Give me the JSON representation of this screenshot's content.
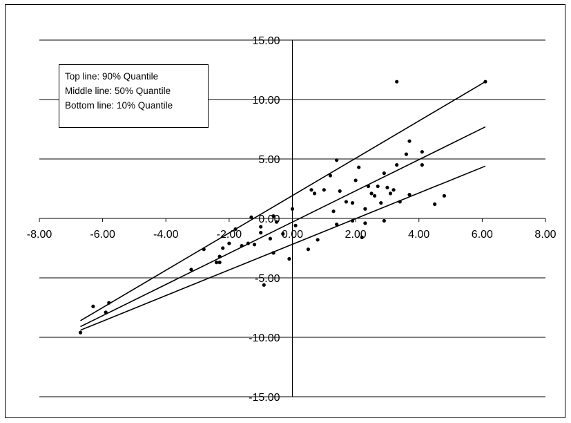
{
  "chart_data": {
    "type": "scatter",
    "xlim": [
      -8,
      8
    ],
    "ylim": [
      -15,
      15
    ],
    "x_ticks": [
      "-8.00",
      "-6.00",
      "-4.00",
      "-2.00",
      "0.00",
      "2.00",
      "4.00",
      "6.00",
      "8.00"
    ],
    "y_ticks": [
      "15.00",
      "10.00",
      "5.00",
      "0.00",
      "-5.00",
      "-10.00",
      "-15.00"
    ],
    "grid": "horizontal",
    "legend_lines": [
      "Top line: 90% Quantile",
      "Middle line: 50% Quantile",
      "Bottom line: 10% Quantile"
    ],
    "series": [
      {
        "type": "scatter",
        "points": [
          [
            -6.7,
            -9.6
          ],
          [
            -6.3,
            -7.4
          ],
          [
            -5.9,
            -7.9
          ],
          [
            -5.8,
            -7.1
          ],
          [
            -3.2,
            -4.3
          ],
          [
            -2.8,
            -2.6
          ],
          [
            -2.4,
            -3.7
          ],
          [
            -2.3,
            -3.2
          ],
          [
            -2.2,
            -2.5
          ],
          [
            -2.3,
            -3.7
          ],
          [
            -2.0,
            -2.1
          ],
          [
            -1.8,
            -0.9
          ],
          [
            -1.6,
            -2.3
          ],
          [
            -1.3,
            0.1
          ],
          [
            -1.2,
            -2.2
          ],
          [
            -1.0,
            -0.7
          ],
          [
            -0.9,
            -5.6
          ],
          [
            -0.7,
            -1.7
          ],
          [
            -0.6,
            -2.9
          ],
          [
            -0.5,
            -0.3
          ],
          [
            -0.3,
            -1.3
          ],
          [
            -0.1,
            -3.4
          ],
          [
            0.0,
            0.8
          ],
          [
            0.1,
            -0.6
          ],
          [
            0.5,
            -2.6
          ],
          [
            0.7,
            2.1
          ],
          [
            1.0,
            2.4
          ],
          [
            1.2,
            3.6
          ],
          [
            1.3,
            0.6
          ],
          [
            1.4,
            4.9
          ],
          [
            1.4,
            -0.5
          ],
          [
            1.5,
            2.3
          ],
          [
            1.7,
            1.4
          ],
          [
            1.9,
            1.3
          ],
          [
            2.0,
            3.2
          ],
          [
            2.1,
            4.3
          ],
          [
            2.2,
            -1.6
          ],
          [
            2.3,
            0.8
          ],
          [
            2.3,
            -0.4
          ],
          [
            2.4,
            2.7
          ],
          [
            2.5,
            2.1
          ],
          [
            2.6,
            1.9
          ],
          [
            2.7,
            2.7
          ],
          [
            2.8,
            1.3
          ],
          [
            2.9,
            -0.2
          ],
          [
            2.9,
            3.8
          ],
          [
            3.0,
            2.6
          ],
          [
            3.1,
            2.1
          ],
          [
            3.2,
            2.4
          ],
          [
            3.3,
            11.5
          ],
          [
            3.3,
            4.5
          ],
          [
            3.4,
            1.4
          ],
          [
            3.6,
            5.4
          ],
          [
            3.7,
            6.5
          ],
          [
            3.7,
            2.0
          ],
          [
            4.1,
            5.6
          ],
          [
            4.1,
            4.5
          ],
          [
            4.5,
            1.2
          ],
          [
            4.8,
            1.9
          ],
          [
            6.1,
            11.5
          ],
          [
            -1.4,
            -2.1
          ],
          [
            -1.0,
            -1.2
          ],
          [
            0.6,
            2.4
          ],
          [
            1.9,
            -0.2
          ],
          [
            0.8,
            -1.8
          ],
          [
            -0.6,
            0.2
          ]
        ]
      },
      {
        "name": "Top line",
        "type": "line",
        "points": [
          [
            -6.7,
            -8.6
          ],
          [
            6.1,
            11.5
          ]
        ]
      },
      {
        "name": "Middle line",
        "type": "line",
        "points": [
          [
            -6.7,
            -9.1
          ],
          [
            6.1,
            7.7
          ]
        ]
      },
      {
        "name": "Bottom line",
        "type": "line",
        "points": [
          [
            -6.7,
            -9.4
          ],
          [
            6.1,
            4.4
          ]
        ]
      }
    ]
  }
}
